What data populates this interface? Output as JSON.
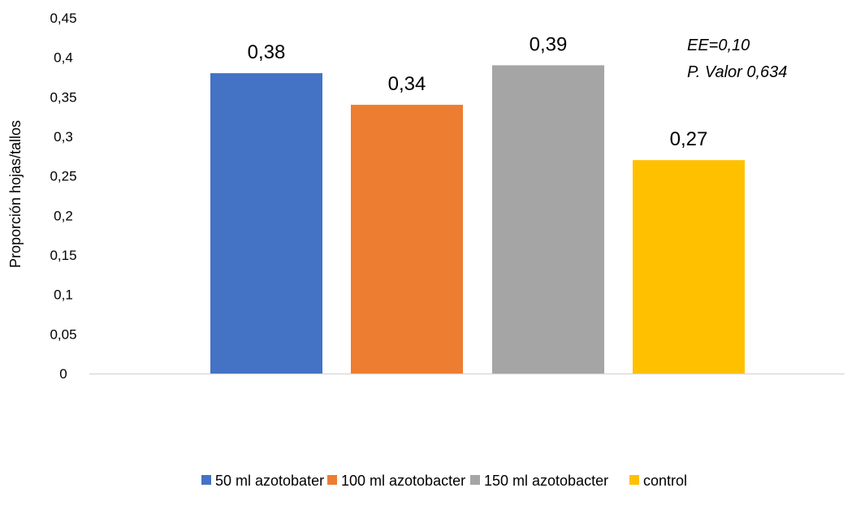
{
  "chart_data": {
    "type": "bar",
    "categories": [
      ""
    ],
    "series": [
      {
        "name": "50 ml azotobater",
        "values": [
          0.38
        ],
        "color": "#4472C4",
        "label": "0,38"
      },
      {
        "name": "100 ml azotobacter",
        "values": [
          0.34
        ],
        "color": "#ED7D31",
        "label": "0,34"
      },
      {
        "name": "150 ml azotobacter",
        "values": [
          0.39
        ],
        "color": "#A5A5A5",
        "label": "0,39"
      },
      {
        "name": "control",
        "values": [
          0.27
        ],
        "color": "#FFC000",
        "label": "0,27"
      }
    ],
    "title": "",
    "xlabel": "",
    "ylabel": "Proporción hojas/tallos",
    "ylim": [
      0,
      0.45
    ],
    "yticks": [
      0,
      0.05,
      0.1,
      0.15,
      0.2,
      0.25,
      0.3,
      0.35,
      0.4,
      0.45
    ],
    "ytick_labels": [
      "0",
      "0,05",
      "0,1",
      "0,15",
      "0,2",
      "0,25",
      "0,3",
      "0,35",
      "0,4",
      "0,45"
    ],
    "annotations": [
      "EE=0,10",
      "P. Valor 0,634"
    ],
    "grid": false,
    "legend_position": "bottom"
  }
}
